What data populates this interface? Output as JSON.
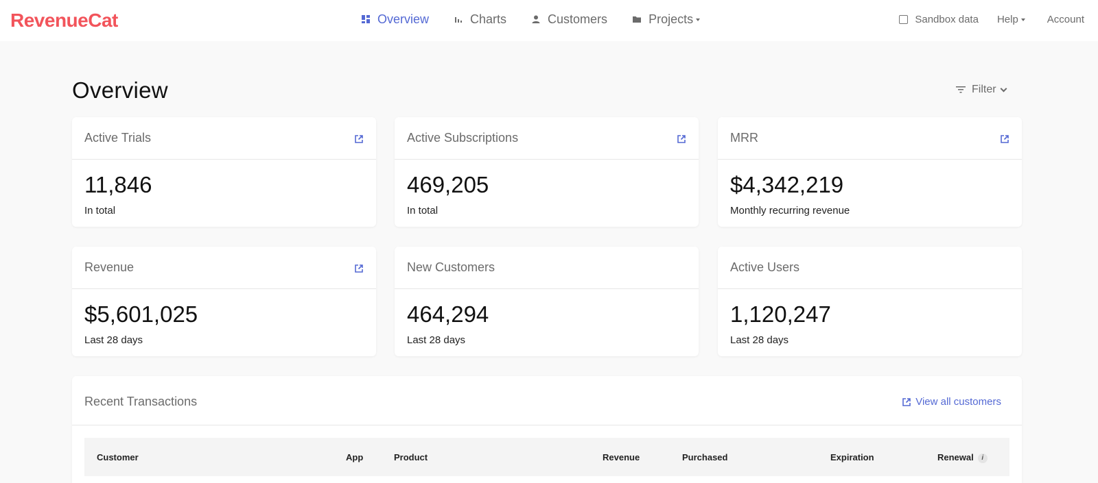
{
  "brand": {
    "name": "RevenueCat",
    "color": "#f2545b"
  },
  "nav": {
    "items": [
      {
        "label": "Overview",
        "icon": "dashboard-icon",
        "active": true
      },
      {
        "label": "Charts",
        "icon": "bar-chart-icon",
        "active": false
      },
      {
        "label": "Customers",
        "icon": "person-icon",
        "active": false
      },
      {
        "label": "Projects",
        "icon": "folder-icon",
        "active": false
      }
    ],
    "accent": "#5469d4"
  },
  "topright": {
    "sandbox_label": "Sandbox data",
    "sandbox_checked": false,
    "help_label": "Help",
    "account_label": "Account"
  },
  "page": {
    "title": "Overview",
    "filter_label": "Filter"
  },
  "cards": [
    {
      "title": "Active Trials",
      "value": "11,846",
      "sub": "In total",
      "has_link": true
    },
    {
      "title": "Active Subscriptions",
      "value": "469,205",
      "sub": "In total",
      "has_link": true
    },
    {
      "title": "MRR",
      "value": "$4,342,219",
      "sub": "Monthly recurring revenue",
      "has_link": true
    },
    {
      "title": "Revenue",
      "value": "$5,601,025",
      "sub": "Last 28 days",
      "has_link": true
    },
    {
      "title": "New Customers",
      "value": "464,294",
      "sub": "Last 28 days",
      "has_link": false
    },
    {
      "title": "Active Users",
      "value": "1,120,247",
      "sub": "Last 28 days",
      "has_link": false
    }
  ],
  "transactions": {
    "title": "Recent Transactions",
    "view_all_label": "View all customers",
    "columns": [
      "Customer",
      "App",
      "Product",
      "Revenue",
      "Purchased",
      "Expiration",
      "Renewal"
    ]
  }
}
